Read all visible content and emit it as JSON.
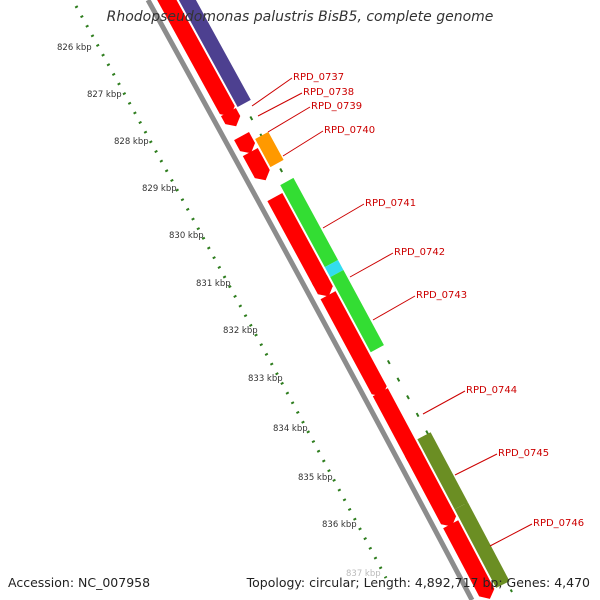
{
  "title": "Rhodopseudomonas palustris BisB5, complete genome",
  "footer": {
    "accession": "Accession: NC_007958",
    "summary": "Topology: circular; Length: 4,892,717 bp; Genes: 4,470"
  },
  "colors": {
    "backbone": "#8c8c8c",
    "forward_strand": "#ff0000",
    "reverse_purple": "#4d4090",
    "reverse_orange": "#ff9900",
    "reverse_green": "#33dd33",
    "reverse_cyan": "#33ddee",
    "reverse_olive": "#6b8e23",
    "label": "#cc0000",
    "ticks": "#2e7d1e"
  },
  "scale_ticks": [
    "826 kbp",
    "827 kbp",
    "828 kbp",
    "829 kbp",
    "830 kbp",
    "831 kbp",
    "832 kbp",
    "833 kbp",
    "834 kbp",
    "835 kbp",
    "836 kbp",
    "837 kbp"
  ],
  "gene_labels": [
    "RPD_0737",
    "RPD_0738",
    "RPD_0739",
    "RPD_0740",
    "RPD_0741",
    "RPD_0742",
    "RPD_0743",
    "RPD_0744",
    "RPD_0745",
    "RPD_0746"
  ]
}
